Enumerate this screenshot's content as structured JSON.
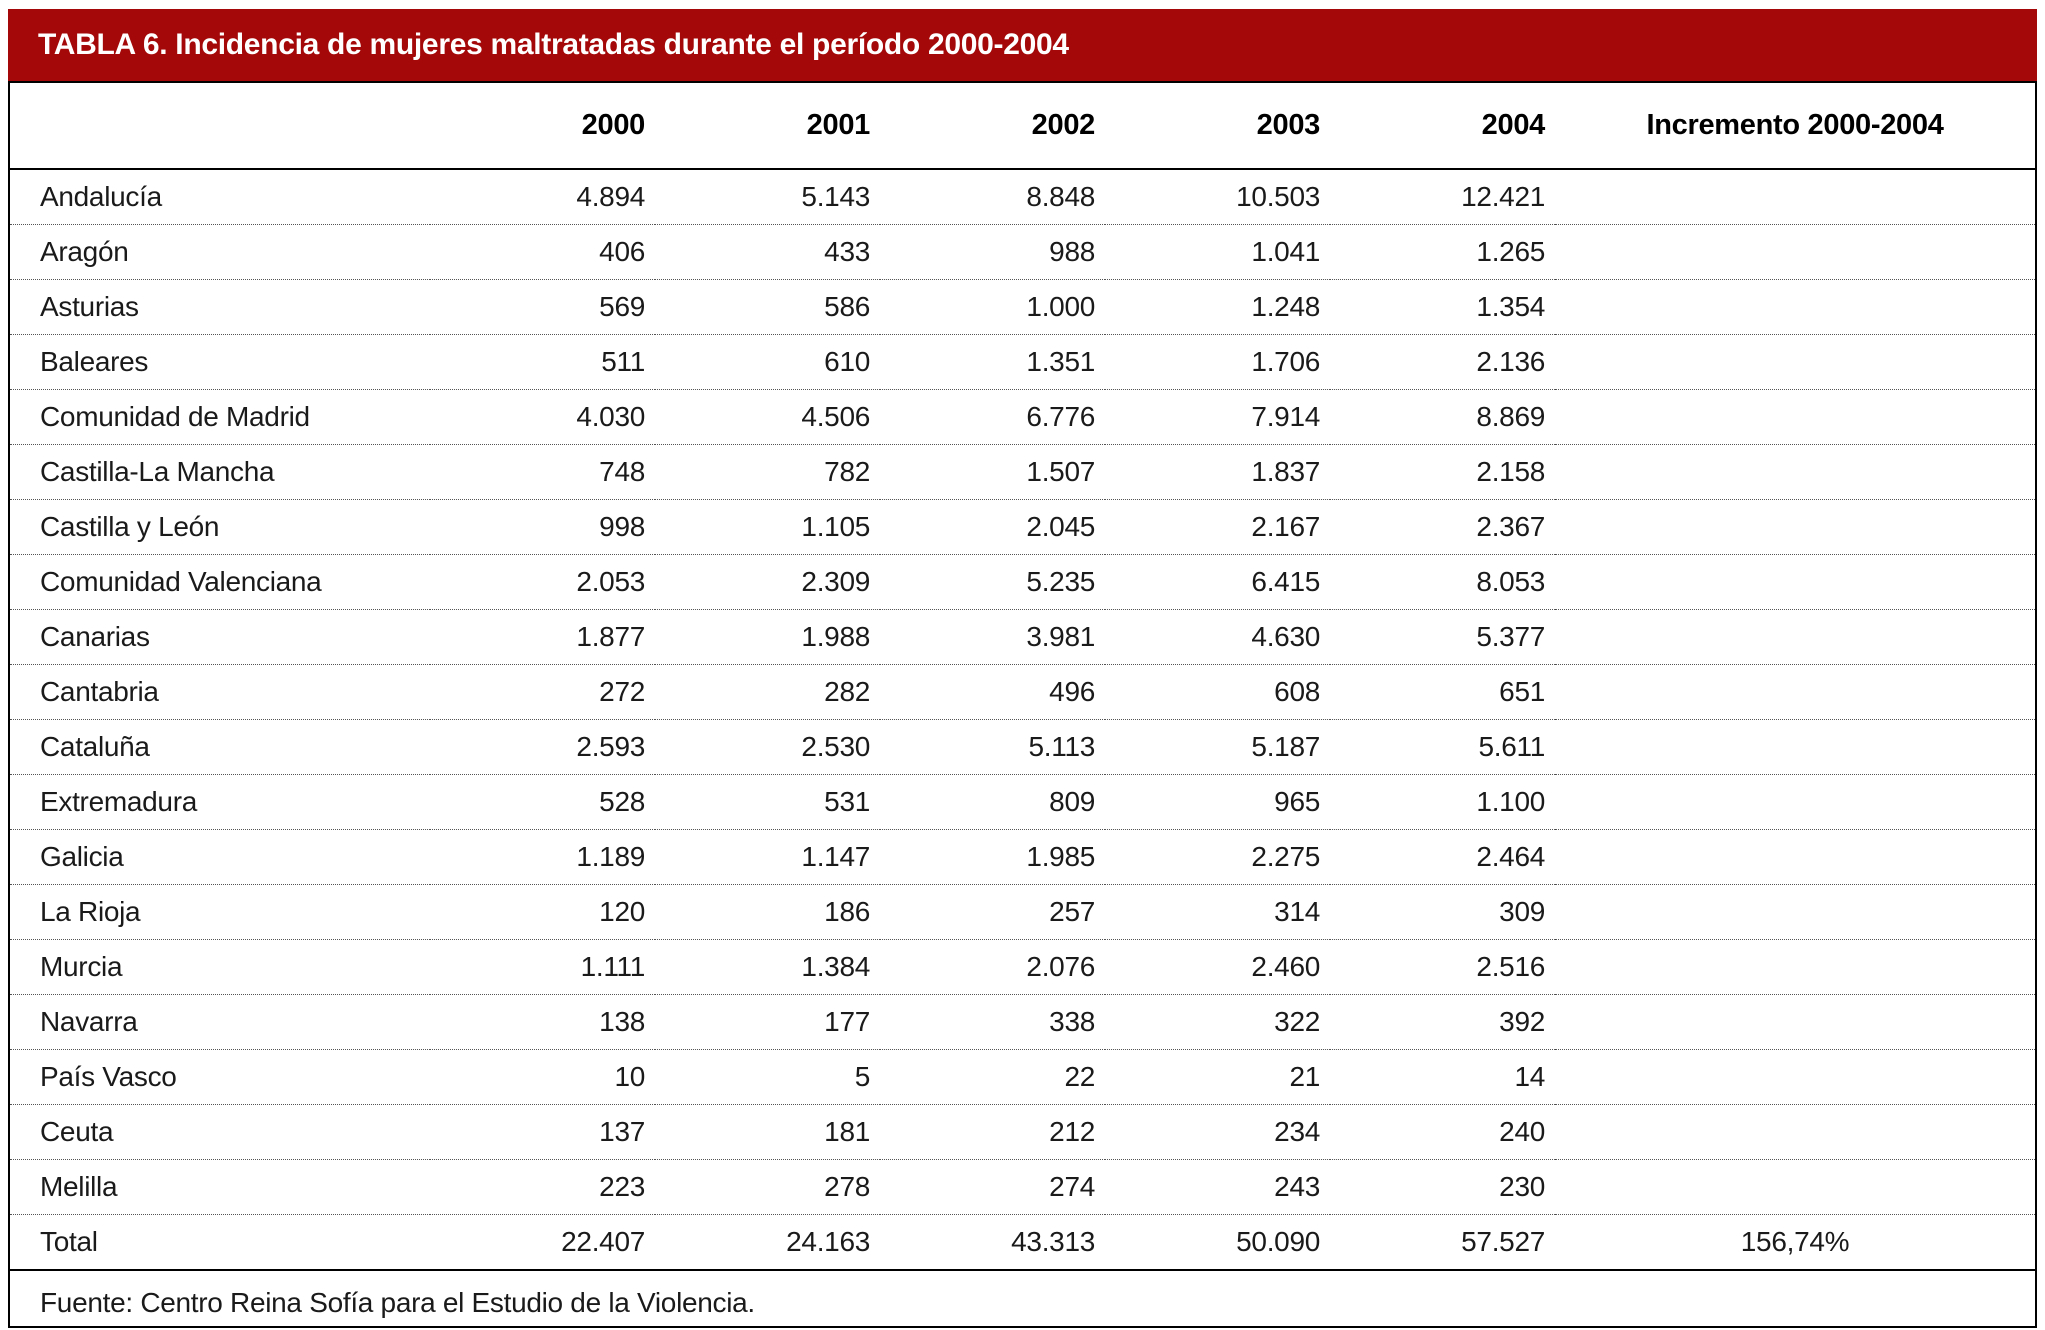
{
  "title": "TABLA 6. Incidencia de mujeres maltratadas durante el período 2000-2004",
  "source_note": "Fuente: Centro Reina Sofía para el Estudio de la Violencia.",
  "colors": {
    "title_bar_bg": "#a40808",
    "title_bar_text": "#ffffff",
    "border": "#000000"
  },
  "chart_data": {
    "type": "table",
    "title": "TABLA 6. Incidencia de mujeres maltratadas durante el período 2000-2004",
    "columns": [
      "",
      "2000",
      "2001",
      "2002",
      "2003",
      "2004",
      "Incremento 2000-2004"
    ],
    "rows": [
      {
        "name": "Andalucía",
        "values": [
          "4.894",
          "5.143",
          "8.848",
          "10.503",
          "12.421"
        ],
        "increment": ""
      },
      {
        "name": "Aragón",
        "values": [
          "406",
          "433",
          "988",
          "1.041",
          "1.265"
        ],
        "increment": ""
      },
      {
        "name": "Asturias",
        "values": [
          "569",
          "586",
          "1.000",
          "1.248",
          "1.354"
        ],
        "increment": ""
      },
      {
        "name": "Baleares",
        "values": [
          "511",
          "610",
          "1.351",
          "1.706",
          "2.136"
        ],
        "increment": ""
      },
      {
        "name": "Comunidad de Madrid",
        "values": [
          "4.030",
          "4.506",
          "6.776",
          "7.914",
          "8.869"
        ],
        "increment": ""
      },
      {
        "name": "Castilla-La Mancha",
        "values": [
          "748",
          "782",
          "1.507",
          "1.837",
          "2.158"
        ],
        "increment": ""
      },
      {
        "name": "Castilla y León",
        "values": [
          "998",
          "1.105",
          "2.045",
          "2.167",
          "2.367"
        ],
        "increment": ""
      },
      {
        "name": "Comunidad Valenciana",
        "values": [
          "2.053",
          "2.309",
          "5.235",
          "6.415",
          "8.053"
        ],
        "increment": ""
      },
      {
        "name": "Canarias",
        "values": [
          "1.877",
          "1.988",
          "3.981",
          "4.630",
          "5.377"
        ],
        "increment": ""
      },
      {
        "name": "Cantabria",
        "values": [
          "272",
          "282",
          "496",
          "608",
          "651"
        ],
        "increment": ""
      },
      {
        "name": "Cataluña",
        "values": [
          "2.593",
          "2.530",
          "5.113",
          "5.187",
          "5.611"
        ],
        "increment": ""
      },
      {
        "name": "Extremadura",
        "values": [
          "528",
          "531",
          "809",
          "965",
          "1.100"
        ],
        "increment": ""
      },
      {
        "name": "Galicia",
        "values": [
          "1.189",
          "1.147",
          "1.985",
          "2.275",
          "2.464"
        ],
        "increment": ""
      },
      {
        "name": "La Rioja",
        "values": [
          "120",
          "186",
          "257",
          "314",
          "309"
        ],
        "increment": ""
      },
      {
        "name": "Murcia",
        "values": [
          "1.111",
          "1.384",
          "2.076",
          "2.460",
          "2.516"
        ],
        "increment": ""
      },
      {
        "name": "Navarra",
        "values": [
          "138",
          "177",
          "338",
          "322",
          "392"
        ],
        "increment": ""
      },
      {
        "name": "País Vasco",
        "values": [
          "10",
          "5",
          "22",
          "21",
          "14"
        ],
        "increment": ""
      },
      {
        "name": "Ceuta",
        "values": [
          "137",
          "181",
          "212",
          "234",
          "240"
        ],
        "increment": ""
      },
      {
        "name": "Melilla",
        "values": [
          "223",
          "278",
          "274",
          "243",
          "230"
        ],
        "increment": ""
      },
      {
        "name": "Total",
        "values": [
          "22.407",
          "24.163",
          "43.313",
          "50.090",
          "57.527"
        ],
        "increment": "156,74%"
      }
    ]
  }
}
